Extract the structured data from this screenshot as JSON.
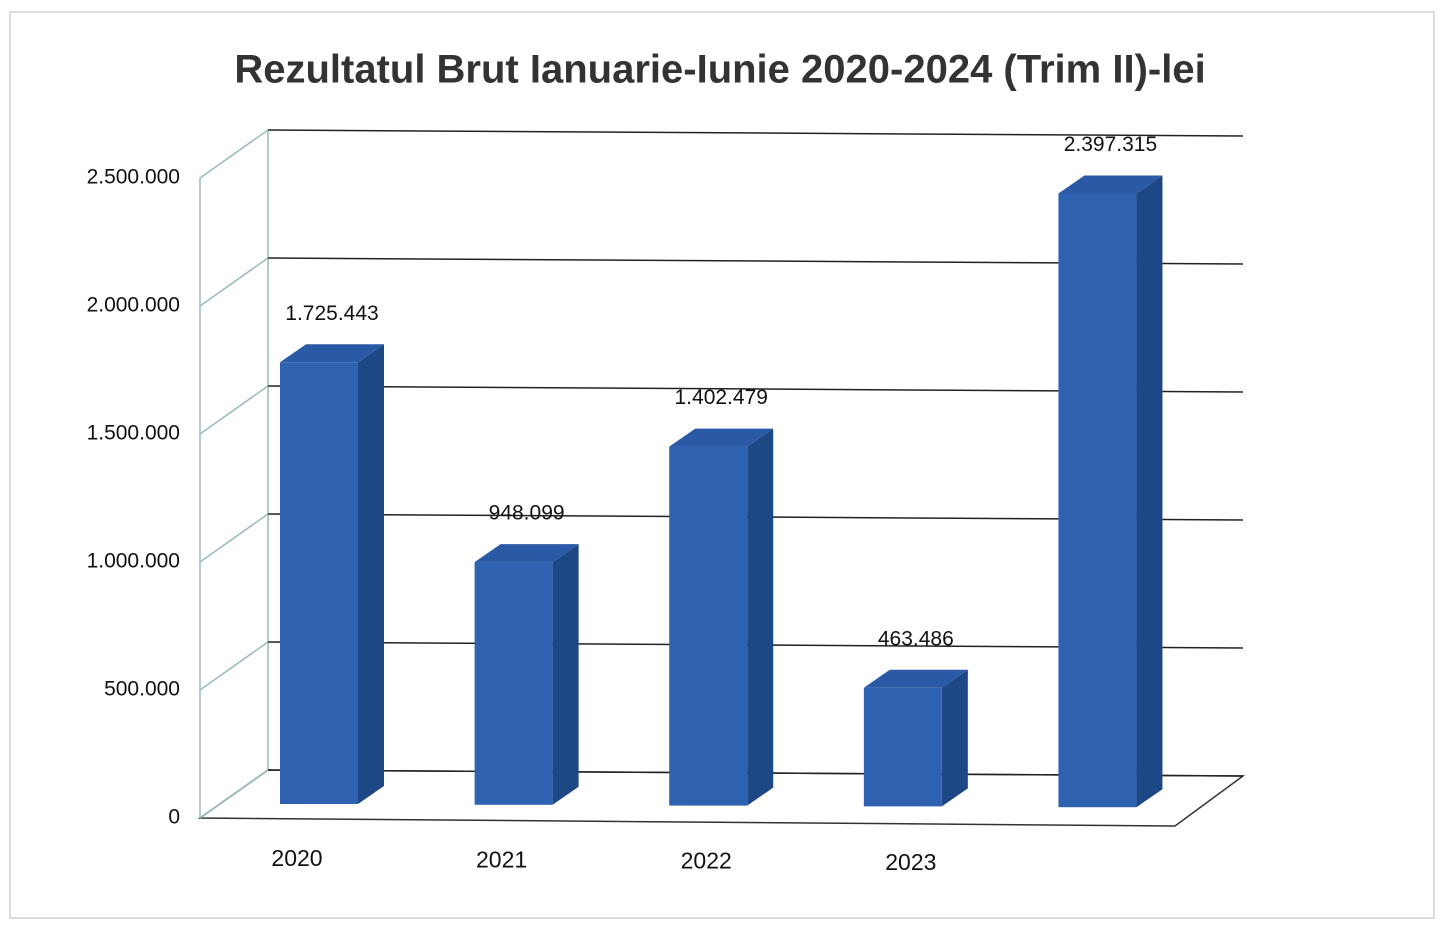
{
  "chart_data": {
    "type": "bar3d",
    "title": "Rezultatul Brut Ianuarie-Iunie 2020-2024 (Trim II)-lei",
    "categories": [
      "2020",
      "2021",
      "2022",
      "2023",
      null
    ],
    "values": [
      1725443,
      948099,
      1402479,
      463486,
      2397315
    ],
    "value_labels": [
      "1.725.443",
      "948.099",
      "1.402.479",
      "463.486",
      "2.397.315"
    ],
    "color": "#2e62b0",
    "ylim": [
      0,
      2500000
    ],
    "yticks": [
      0,
      {
        "value": 500000,
        "label": "500.000"
      },
      {
        "value": 1000000,
        "label": "1.000.000"
      },
      {
        "value": 1500000,
        "label": "1.500.000"
      },
      {
        "value": 2000000,
        "label": "2.000.000"
      },
      {
        "value": 2500000,
        "label": "2.500.000"
      }
    ],
    "grid": true
  }
}
